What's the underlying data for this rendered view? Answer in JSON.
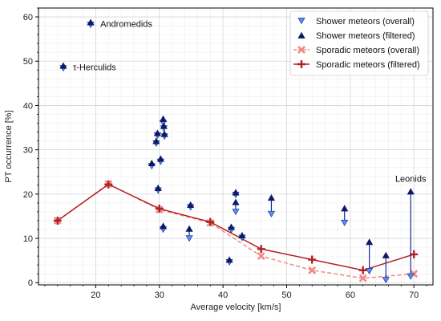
{
  "chart_data": {
    "type": "scatter",
    "xlabel": "Average velocity [km/s]",
    "ylabel": "PT occurrence [%]",
    "xlim": [
      11,
      73
    ],
    "ylim": [
      -0.5,
      62
    ],
    "xticks": [
      20,
      30,
      40,
      50,
      60,
      70
    ],
    "yticks": [
      0,
      10,
      20,
      30,
      40,
      50,
      60
    ],
    "grid": true,
    "legend_position": "top-right",
    "colors": {
      "shower_overall": "#5b8ff9",
      "shower_filtered": "#0b1a6b",
      "sporadic_overall": "#f08a84",
      "sporadic_filtered": "#b22222",
      "arrow": "#1a2a8c"
    },
    "legend": [
      {
        "label": "Shower meteors (overall)",
        "key": "shower_overall"
      },
      {
        "label": "Shower meteors (filtered)",
        "key": "shower_filtered"
      },
      {
        "label": "Sporadic meteors (overall)",
        "key": "sporadic_overall"
      },
      {
        "label": "Sporadic meteors (filtered)",
        "key": "sporadic_filtered"
      }
    ],
    "shower_pairs": [
      {
        "x": 19.2,
        "overall": 58.2,
        "filtered": 58.8,
        "label": "Andromedids"
      },
      {
        "x": 14.9,
        "overall": 48.4,
        "filtered": 49.0,
        "label": "τ-Herculids"
      },
      {
        "x": 28.8,
        "overall": 26.3,
        "filtered": 27.0
      },
      {
        "x": 29.5,
        "overall": 31.4,
        "filtered": 32.0
      },
      {
        "x": 29.7,
        "overall": 33.2,
        "filtered": 33.8
      },
      {
        "x": 29.8,
        "overall": 20.8,
        "filtered": 21.4
      },
      {
        "x": 30.2,
        "overall": 27.3,
        "filtered": 28.0
      },
      {
        "x": 30.6,
        "overall": 36.0,
        "filtered": 37.0
      },
      {
        "x": 30.7,
        "overall": 34.8,
        "filtered": 35.4
      },
      {
        "x": 30.8,
        "overall": 33.0,
        "filtered": 33.6
      },
      {
        "x": 30.6,
        "overall": 12.0,
        "filtered": 12.8
      },
      {
        "x": 34.9,
        "overall": 17.0,
        "filtered": 17.6
      },
      {
        "x": 34.7,
        "overall": 10.0,
        "filtered": 12.2
      },
      {
        "x": 41.0,
        "overall": 4.6,
        "filtered": 5.2
      },
      {
        "x": 41.3,
        "overall": 11.9,
        "filtered": 12.6
      },
      {
        "x": 42.0,
        "overall": 19.8,
        "filtered": 20.4
      },
      {
        "x": 42.0,
        "overall": 16.0,
        "filtered": 18.2
      },
      {
        "x": 43.0,
        "overall": 10.1,
        "filtered": 10.7
      },
      {
        "x": 47.6,
        "overall": 15.5,
        "filtered": 19.2
      },
      {
        "x": 59.1,
        "overall": 13.5,
        "filtered": 16.8
      },
      {
        "x": 63.0,
        "overall": 2.6,
        "filtered": 9.2
      },
      {
        "x": 65.6,
        "overall": 0.6,
        "filtered": 6.2
      },
      {
        "x": 69.5,
        "overall": 1.4,
        "filtered": 20.6,
        "label": "Leonids"
      }
    ],
    "sporadic_overall": {
      "x": [
        14,
        22,
        30,
        38,
        46,
        54,
        62,
        70
      ],
      "y": [
        14.0,
        22.3,
        16.5,
        13.5,
        6.0,
        2.8,
        1.0,
        2.0
      ]
    },
    "sporadic_filtered": {
      "x": [
        14,
        22,
        30,
        38,
        46,
        54,
        62,
        70
      ],
      "y": [
        14.0,
        22.2,
        16.7,
        13.7,
        7.6,
        5.2,
        2.8,
        6.4
      ]
    }
  }
}
